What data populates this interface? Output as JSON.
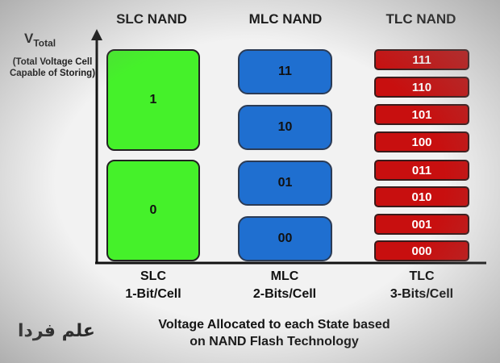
{
  "headers": {
    "slc": "SLC NAND",
    "mlc": "MLC NAND",
    "tlc": "TLC NAND"
  },
  "axis": {
    "v": "V",
    "sub": "Total",
    "desc": "(Total Voltage Cell Capable of Storing)"
  },
  "slc_states": [
    "1",
    "0"
  ],
  "mlc_states": [
    "11",
    "10",
    "01",
    "00"
  ],
  "tlc_states": [
    "111",
    "110",
    "101",
    "100",
    "011",
    "010",
    "001",
    "000"
  ],
  "bottom": {
    "slc_name": "SLC",
    "slc_bits": "1-Bit/Cell",
    "mlc_name": "MLC",
    "mlc_bits": "2-Bits/Cell",
    "tlc_name": "TLC",
    "tlc_bits": "3-Bits/Cell"
  },
  "caption": {
    "line1": "Voltage Allocated to each State based",
    "line2": "on NAND Flash Technology"
  },
  "logo_text": "علم فردا",
  "colors": {
    "slc": "#45f12a",
    "mlc": "#1f6fd0",
    "tlc": "#c80f0f"
  }
}
